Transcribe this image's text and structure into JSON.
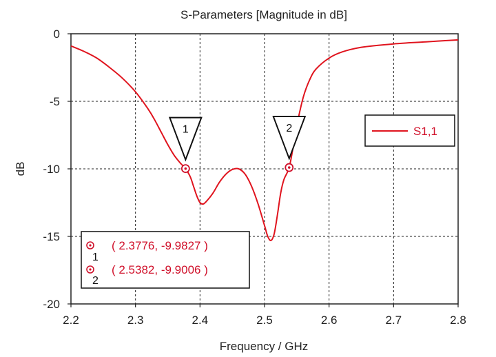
{
  "chart_data": {
    "type": "line",
    "title": "S-Parameters [Magnitude in dB]",
    "xlabel": "Frequency / GHz",
    "ylabel": "dB",
    "xlim": [
      2.2,
      2.8
    ],
    "ylim": [
      -20,
      0
    ],
    "x_ticks": [
      "2.2",
      "2.3",
      "2.4",
      "2.5",
      "2.6",
      "2.7",
      "2.8"
    ],
    "y_ticks": [
      "0",
      "-5",
      "-10",
      "-15",
      "-20"
    ],
    "grid": true,
    "legend_position": "right",
    "series": [
      {
        "name": "S1,1",
        "color": "#e0141e",
        "x": [
          2.2,
          2.22,
          2.24,
          2.26,
          2.28,
          2.3,
          2.32,
          2.33,
          2.34,
          2.35,
          2.36,
          2.37,
          2.3776,
          2.385,
          2.39,
          2.395,
          2.4,
          2.405,
          2.41,
          2.42,
          2.43,
          2.44,
          2.45,
          2.46,
          2.47,
          2.48,
          2.49,
          2.5,
          2.505,
          2.51,
          2.515,
          2.52,
          2.525,
          2.53,
          2.5382,
          2.545,
          2.55,
          2.56,
          2.57,
          2.58,
          2.6,
          2.62,
          2.65,
          2.7,
          2.75,
          2.8
        ],
        "y": [
          -0.9,
          -1.3,
          -1.8,
          -2.5,
          -3.3,
          -4.3,
          -5.6,
          -6.4,
          -7.3,
          -8.2,
          -9.0,
          -9.6,
          -9.98,
          -10.6,
          -11.3,
          -12.0,
          -12.5,
          -12.6,
          -12.4,
          -11.8,
          -11.0,
          -10.4,
          -10.05,
          -10.0,
          -10.4,
          -11.3,
          -12.6,
          -14.2,
          -15.0,
          -15.3,
          -14.8,
          -13.4,
          -11.8,
          -10.8,
          -9.9,
          -8.2,
          -6.8,
          -4.7,
          -3.4,
          -2.6,
          -1.8,
          -1.35,
          -1.0,
          -0.75,
          -0.6,
          -0.45
        ]
      }
    ],
    "markers": [
      {
        "id": "1",
        "x": 2.3776,
        "y": -9.9827
      },
      {
        "id": "2",
        "x": 2.5382,
        "y": -9.9006
      }
    ],
    "marker_readouts": [
      "( 2.3776, -9.9827 )",
      "( 2.5382, -9.9006 )"
    ]
  }
}
